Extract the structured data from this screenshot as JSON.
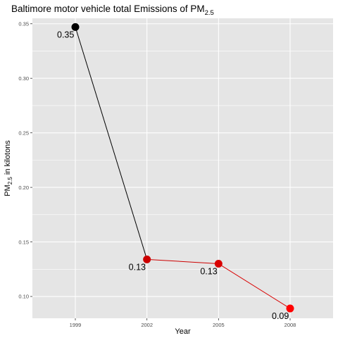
{
  "chart_data": {
    "type": "line",
    "title": {
      "prefix": "Baltimore motor vehicle total Emissions of PM",
      "subscript": "2.5"
    },
    "xlabel": "Year",
    "ylabel": {
      "prefix": "PM",
      "subscript": "2.5",
      "suffix": " in kilotons"
    },
    "categories": [
      "1999",
      "2002",
      "2005",
      "2008"
    ],
    "values": [
      0.347,
      0.134,
      0.13,
      0.089
    ],
    "data_labels": [
      "0.35",
      "0.13",
      "0.13",
      "0.09"
    ],
    "ylim": [
      0.08,
      0.355
    ],
    "yticks": [
      0.1,
      0.15,
      0.2,
      0.25,
      0.3,
      0.35
    ],
    "ytick_labels": [
      "0.10",
      "0.15",
      "0.20",
      "0.25",
      "0.30",
      "0.35"
    ],
    "point_colors": [
      "#000000",
      "#cc0000",
      "#d90000",
      "#ff0000"
    ],
    "segment_colors": [
      "#000000",
      "#cc0000",
      "#d90000"
    ],
    "panel_background": "#e5e5e5",
    "gridline_color": "#ffffff",
    "grid": true,
    "legend": "none"
  }
}
